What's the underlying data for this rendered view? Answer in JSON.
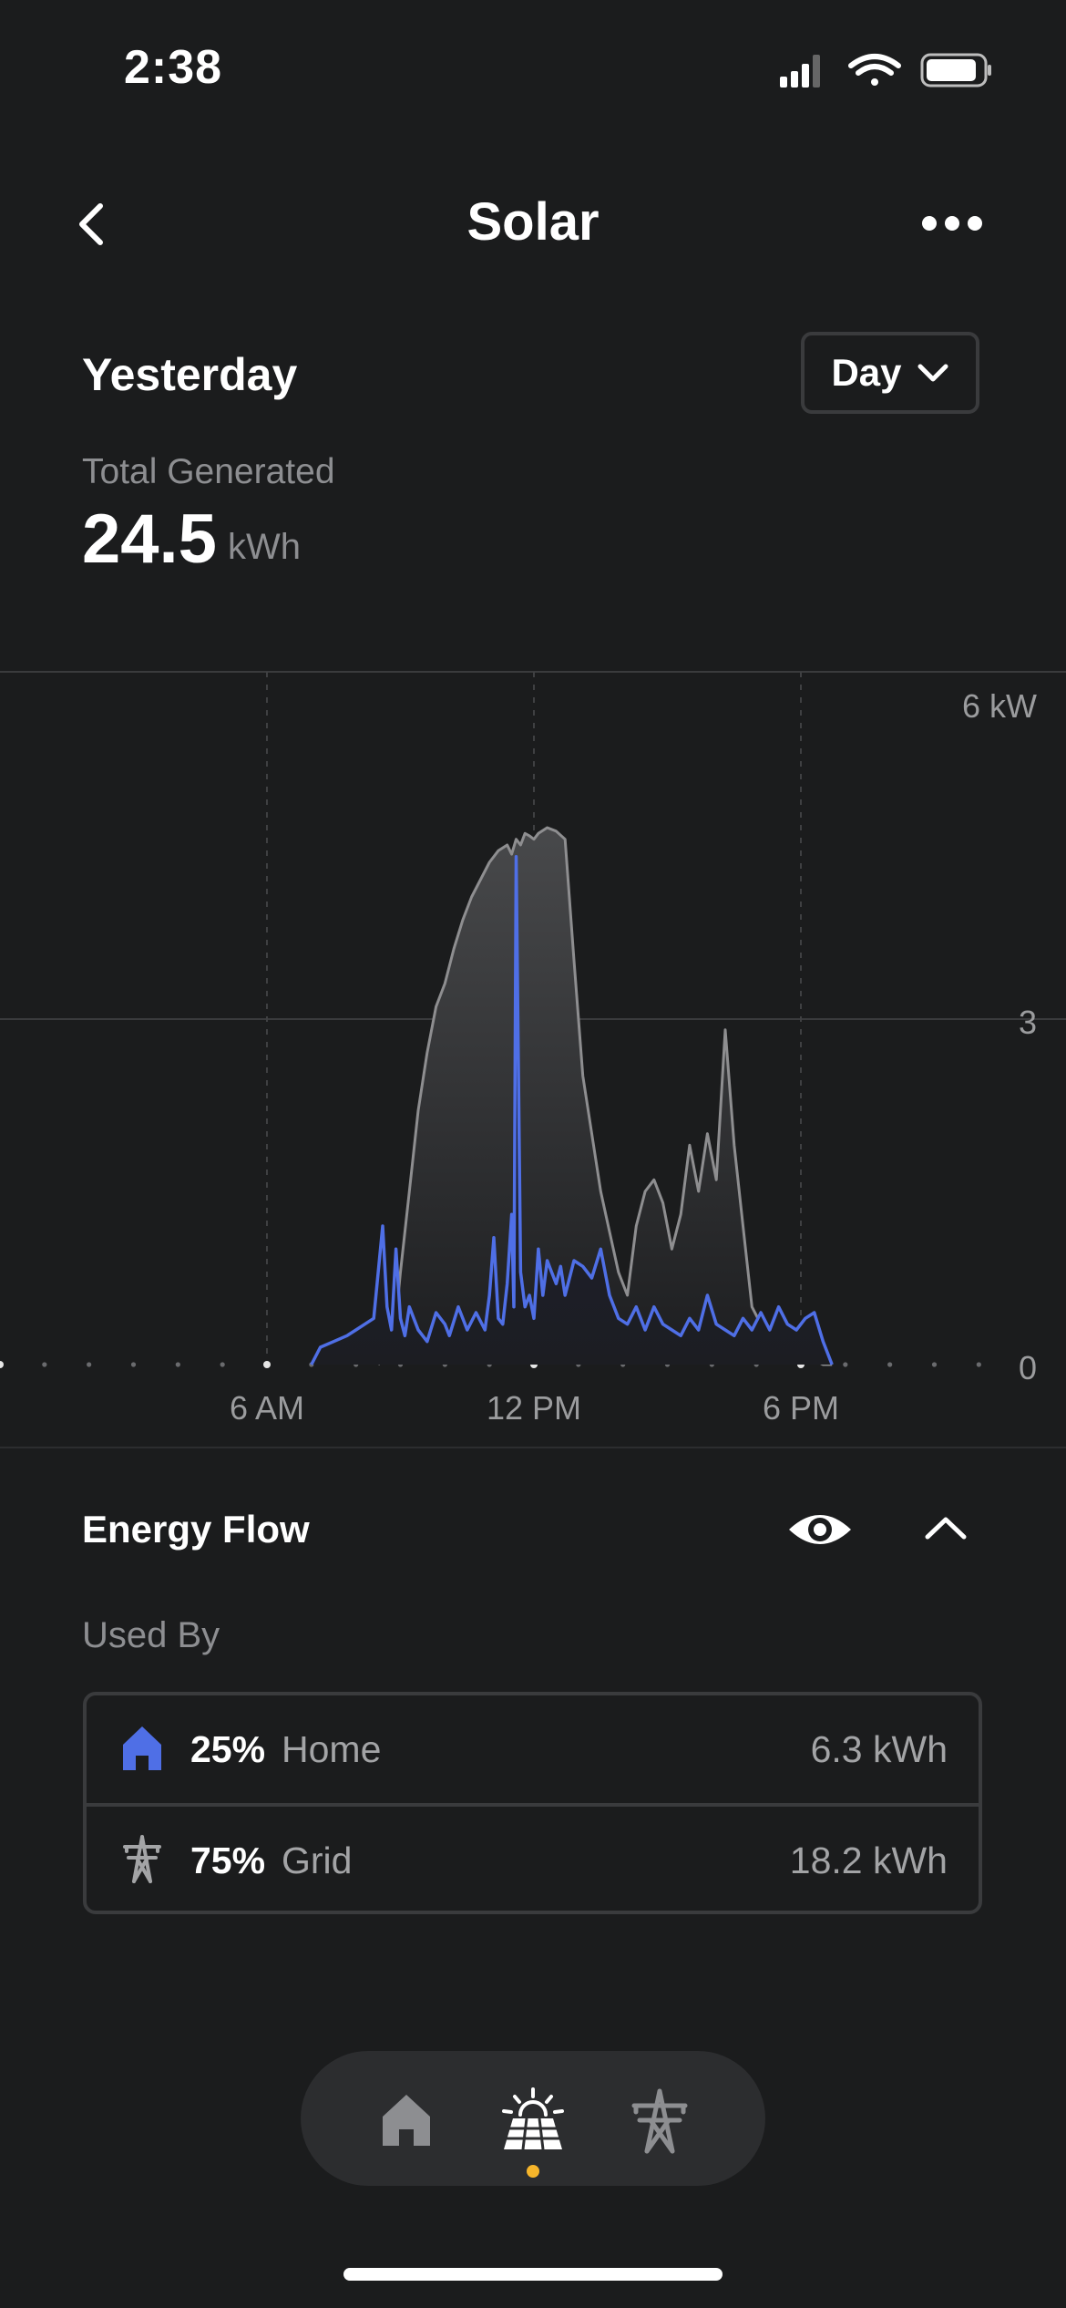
{
  "status": {
    "time": "2:38"
  },
  "header": {
    "title": "Solar"
  },
  "period": {
    "label": "Yesterday",
    "range": "Day"
  },
  "total": {
    "label": "Total Generated",
    "value": "24.5",
    "unit": "kWh"
  },
  "chart_data": {
    "type": "area",
    "y_tick_labels": [
      "6 kW",
      "3",
      "0"
    ],
    "x_tick_labels": [
      "6 AM",
      "12 PM",
      "6 PM"
    ],
    "ylim": [
      0,
      6
    ],
    "xlim_hours": [
      0,
      24
    ],
    "grid": true,
    "series": [
      {
        "color": "#8e8e90",
        "x_hours": [
          8.5,
          8.6,
          8.7,
          8.8,
          8.9,
          9.0,
          9.2,
          9.4,
          9.6,
          9.8,
          10.0,
          10.2,
          10.4,
          10.6,
          10.8,
          11.0,
          11.2,
          11.4,
          11.5,
          11.6,
          11.7,
          11.8,
          11.9,
          12.0,
          12.1,
          12.3,
          12.5,
          12.7,
          12.9,
          13.1,
          13.3,
          13.5,
          13.7,
          13.9,
          14.1,
          14.3,
          14.5,
          14.7,
          14.9,
          15.1,
          15.3,
          15.5,
          15.7,
          15.9,
          16.1,
          16.3,
          16.5,
          16.7,
          16.9,
          17.1,
          17.3,
          17.5,
          17.7,
          17.9,
          18.1,
          18.3,
          18.4,
          18.5,
          18.7
        ],
        "y_kw": [
          0,
          0.05,
          0.1,
          0.2,
          0.4,
          0.8,
          1.5,
          2.2,
          2.7,
          3.1,
          3.3,
          3.6,
          3.85,
          4.05,
          4.2,
          4.35,
          4.45,
          4.5,
          4.42,
          4.55,
          4.5,
          4.6,
          4.58,
          4.55,
          4.6,
          4.65,
          4.62,
          4.55,
          3.5,
          2.5,
          2.0,
          1.5,
          1.15,
          0.8,
          0.6,
          1.2,
          1.5,
          1.6,
          1.4,
          1.0,
          1.3,
          1.9,
          1.5,
          2.0,
          1.6,
          2.9,
          1.9,
          1.2,
          0.5,
          0.35,
          0.3,
          0.28,
          0.25,
          0.2,
          0.15,
          0.05,
          0.02,
          0,
          0
        ],
        "fill_top": "#48494b",
        "fill_bottom": "#1d1e20"
      },
      {
        "color": "#4f6fe6",
        "x_hours": [
          7.0,
          7.2,
          7.5,
          7.8,
          8.0,
          8.2,
          8.4,
          8.5,
          8.6,
          8.7,
          8.8,
          8.9,
          9.0,
          9.1,
          9.2,
          9.4,
          9.6,
          9.8,
          10.0,
          10.1,
          10.3,
          10.5,
          10.7,
          10.9,
          11.0,
          11.1,
          11.2,
          11.3,
          11.4,
          11.5,
          11.55,
          11.6,
          11.7,
          11.8,
          11.9,
          12.0,
          12.1,
          12.2,
          12.3,
          12.4,
          12.5,
          12.6,
          12.7,
          12.9,
          13.1,
          13.3,
          13.5,
          13.7,
          13.9,
          14.1,
          14.3,
          14.5,
          14.7,
          14.9,
          15.1,
          15.3,
          15.5,
          15.7,
          15.9,
          16.1,
          16.3,
          16.5,
          16.7,
          16.9,
          17.1,
          17.3,
          17.5,
          17.7,
          17.9,
          18.1,
          18.3,
          18.5,
          18.7
        ],
        "y_kw": [
          0,
          0.15,
          0.2,
          0.25,
          0.3,
          0.35,
          0.4,
          0.8,
          1.2,
          0.5,
          0.3,
          1.0,
          0.4,
          0.25,
          0.5,
          0.3,
          0.2,
          0.45,
          0.35,
          0.25,
          0.5,
          0.3,
          0.45,
          0.3,
          0.6,
          1.1,
          0.4,
          0.35,
          0.7,
          1.3,
          0.5,
          4.4,
          0.8,
          0.5,
          0.6,
          0.4,
          1.0,
          0.6,
          0.9,
          0.8,
          0.7,
          0.85,
          0.6,
          0.9,
          0.85,
          0.75,
          1.0,
          0.6,
          0.4,
          0.35,
          0.5,
          0.3,
          0.5,
          0.35,
          0.3,
          0.25,
          0.4,
          0.3,
          0.6,
          0.35,
          0.3,
          0.25,
          0.4,
          0.3,
          0.45,
          0.3,
          0.5,
          0.35,
          0.3,
          0.4,
          0.45,
          0.2,
          0.0
        ],
        "fill_top": "#222641",
        "fill_bottom": "#1c1d22"
      }
    ]
  },
  "energy_flow": {
    "title": "Energy Flow",
    "used_by_label": "Used By",
    "rows": [
      {
        "icon": "home-icon",
        "pct": "25%",
        "name": "Home",
        "value": "6.3 kWh",
        "icon_color": "#4f6fe6"
      },
      {
        "icon": "power-tower-icon",
        "pct": "75%",
        "name": "Grid",
        "value": "18.2 kWh",
        "icon_color": "#a3a4a6"
      }
    ]
  },
  "nav": {
    "items": [
      {
        "icon": "home-icon"
      },
      {
        "icon": "solar-panel-icon",
        "active": true
      },
      {
        "icon": "power-tower-icon"
      }
    ],
    "active_color": "#f6b52b"
  }
}
